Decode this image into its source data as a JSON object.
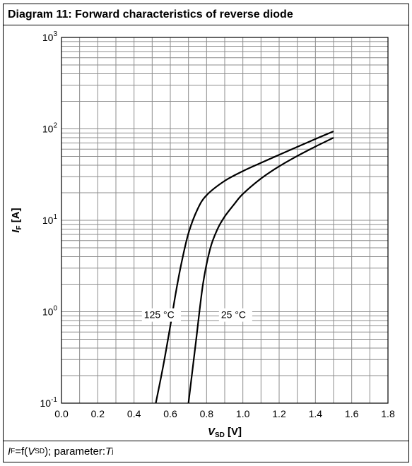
{
  "chart_data": {
    "type": "line",
    "title": "Diagram 11: Forward characteristics of reverse diode",
    "xlabel": "VSD [V]",
    "xlabel_main": "V",
    "xlabel_sub": "SD",
    "xlabel_unit": " [V]",
    "ylabel": "IF [A]",
    "ylabel_main": "I",
    "ylabel_sub": "F",
    "ylabel_unit": " [A]",
    "xlim": [
      0,
      1.8
    ],
    "ylim": [
      0.1,
      1000
    ],
    "yscale": "log",
    "grid": true,
    "x_ticks": [
      "0.0",
      "0.2",
      "0.4",
      "0.6",
      "0.8",
      "1.0",
      "1.2",
      "1.4",
      "1.6",
      "1.8"
    ],
    "y_ticks": [
      {
        "base": "10",
        "exp": "-1",
        "value": 0.1
      },
      {
        "base": "10",
        "exp": "0",
        "value": 1
      },
      {
        "base": "10",
        "exp": "1",
        "value": 10
      },
      {
        "base": "10",
        "exp": "2",
        "value": 100
      },
      {
        "base": "10",
        "exp": "3",
        "value": 1000
      }
    ],
    "series": [
      {
        "name": "125 °C",
        "x": [
          0.52,
          0.56,
          0.6,
          0.63,
          0.66,
          0.7,
          0.75,
          0.8,
          0.9,
          1.0,
          1.1,
          1.2,
          1.3,
          1.4,
          1.5
        ],
        "y": [
          0.1,
          0.25,
          0.7,
          1.6,
          3.3,
          7.2,
          13.2,
          18.8,
          27.0,
          34.5,
          42.5,
          52.0,
          63.5,
          77.5,
          94.0
        ]
      },
      {
        "name": "25 °C",
        "x": [
          0.7,
          0.74,
          0.78,
          0.82,
          0.86,
          0.9,
          0.95,
          1.0,
          1.1,
          1.2,
          1.3,
          1.4,
          1.5
        ],
        "y": [
          0.1,
          0.45,
          2.0,
          4.9,
          8.0,
          11.0,
          14.8,
          19.4,
          28.6,
          38.9,
          50.5,
          64.0,
          80.0
        ]
      }
    ],
    "annotations": [
      {
        "text": "125 °C",
        "x": 0.455,
        "y": 0.85
      },
      {
        "text": "25 °C",
        "x": 0.88,
        "y": 0.85
      }
    ],
    "footer": {
      "lhs_main": "I",
      "lhs_sub": "F",
      "middle": "=f(",
      "arg_main": "V",
      "arg_sub": "SD",
      "rest": "); parameter: ",
      "param_main": "T",
      "param_sub": "j"
    }
  }
}
